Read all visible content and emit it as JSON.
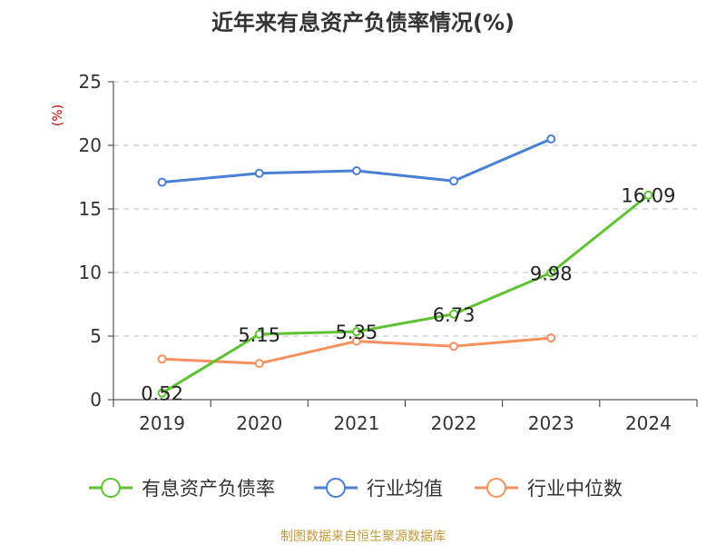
{
  "chart_data": {
    "type": "line",
    "title": "近年来有息资产负债率情况(%)",
    "ylabel": "(%)",
    "categories": [
      "2019",
      "2020",
      "2021",
      "2022",
      "2023",
      "2024"
    ],
    "ylim": [
      0,
      25
    ],
    "yticks": [
      0,
      5,
      10,
      15,
      20,
      25
    ],
    "grid": "horizontal-dashed",
    "legend_position": "bottom",
    "series": [
      {
        "name": "有息资产负债率",
        "color": "#5ec232",
        "values": [
          0.52,
          5.15,
          5.35,
          6.73,
          9.98,
          16.09
        ],
        "labels": [
          "0.52",
          "5.15",
          "5.35",
          "6.73",
          "9.98",
          "16.09"
        ]
      },
      {
        "name": "行业均值",
        "color": "#4a7fd6",
        "values": [
          17.1,
          17.8,
          18.0,
          17.2,
          20.5,
          null
        ]
      },
      {
        "name": "行业中位数",
        "color": "#f5905f",
        "values": [
          3.2,
          2.85,
          4.6,
          4.2,
          4.85,
          null
        ]
      }
    ],
    "unit_color": "#cc0000"
  },
  "source": {
    "text": "制图数据来自恒生聚源数据库",
    "color": "#c49a3a"
  }
}
